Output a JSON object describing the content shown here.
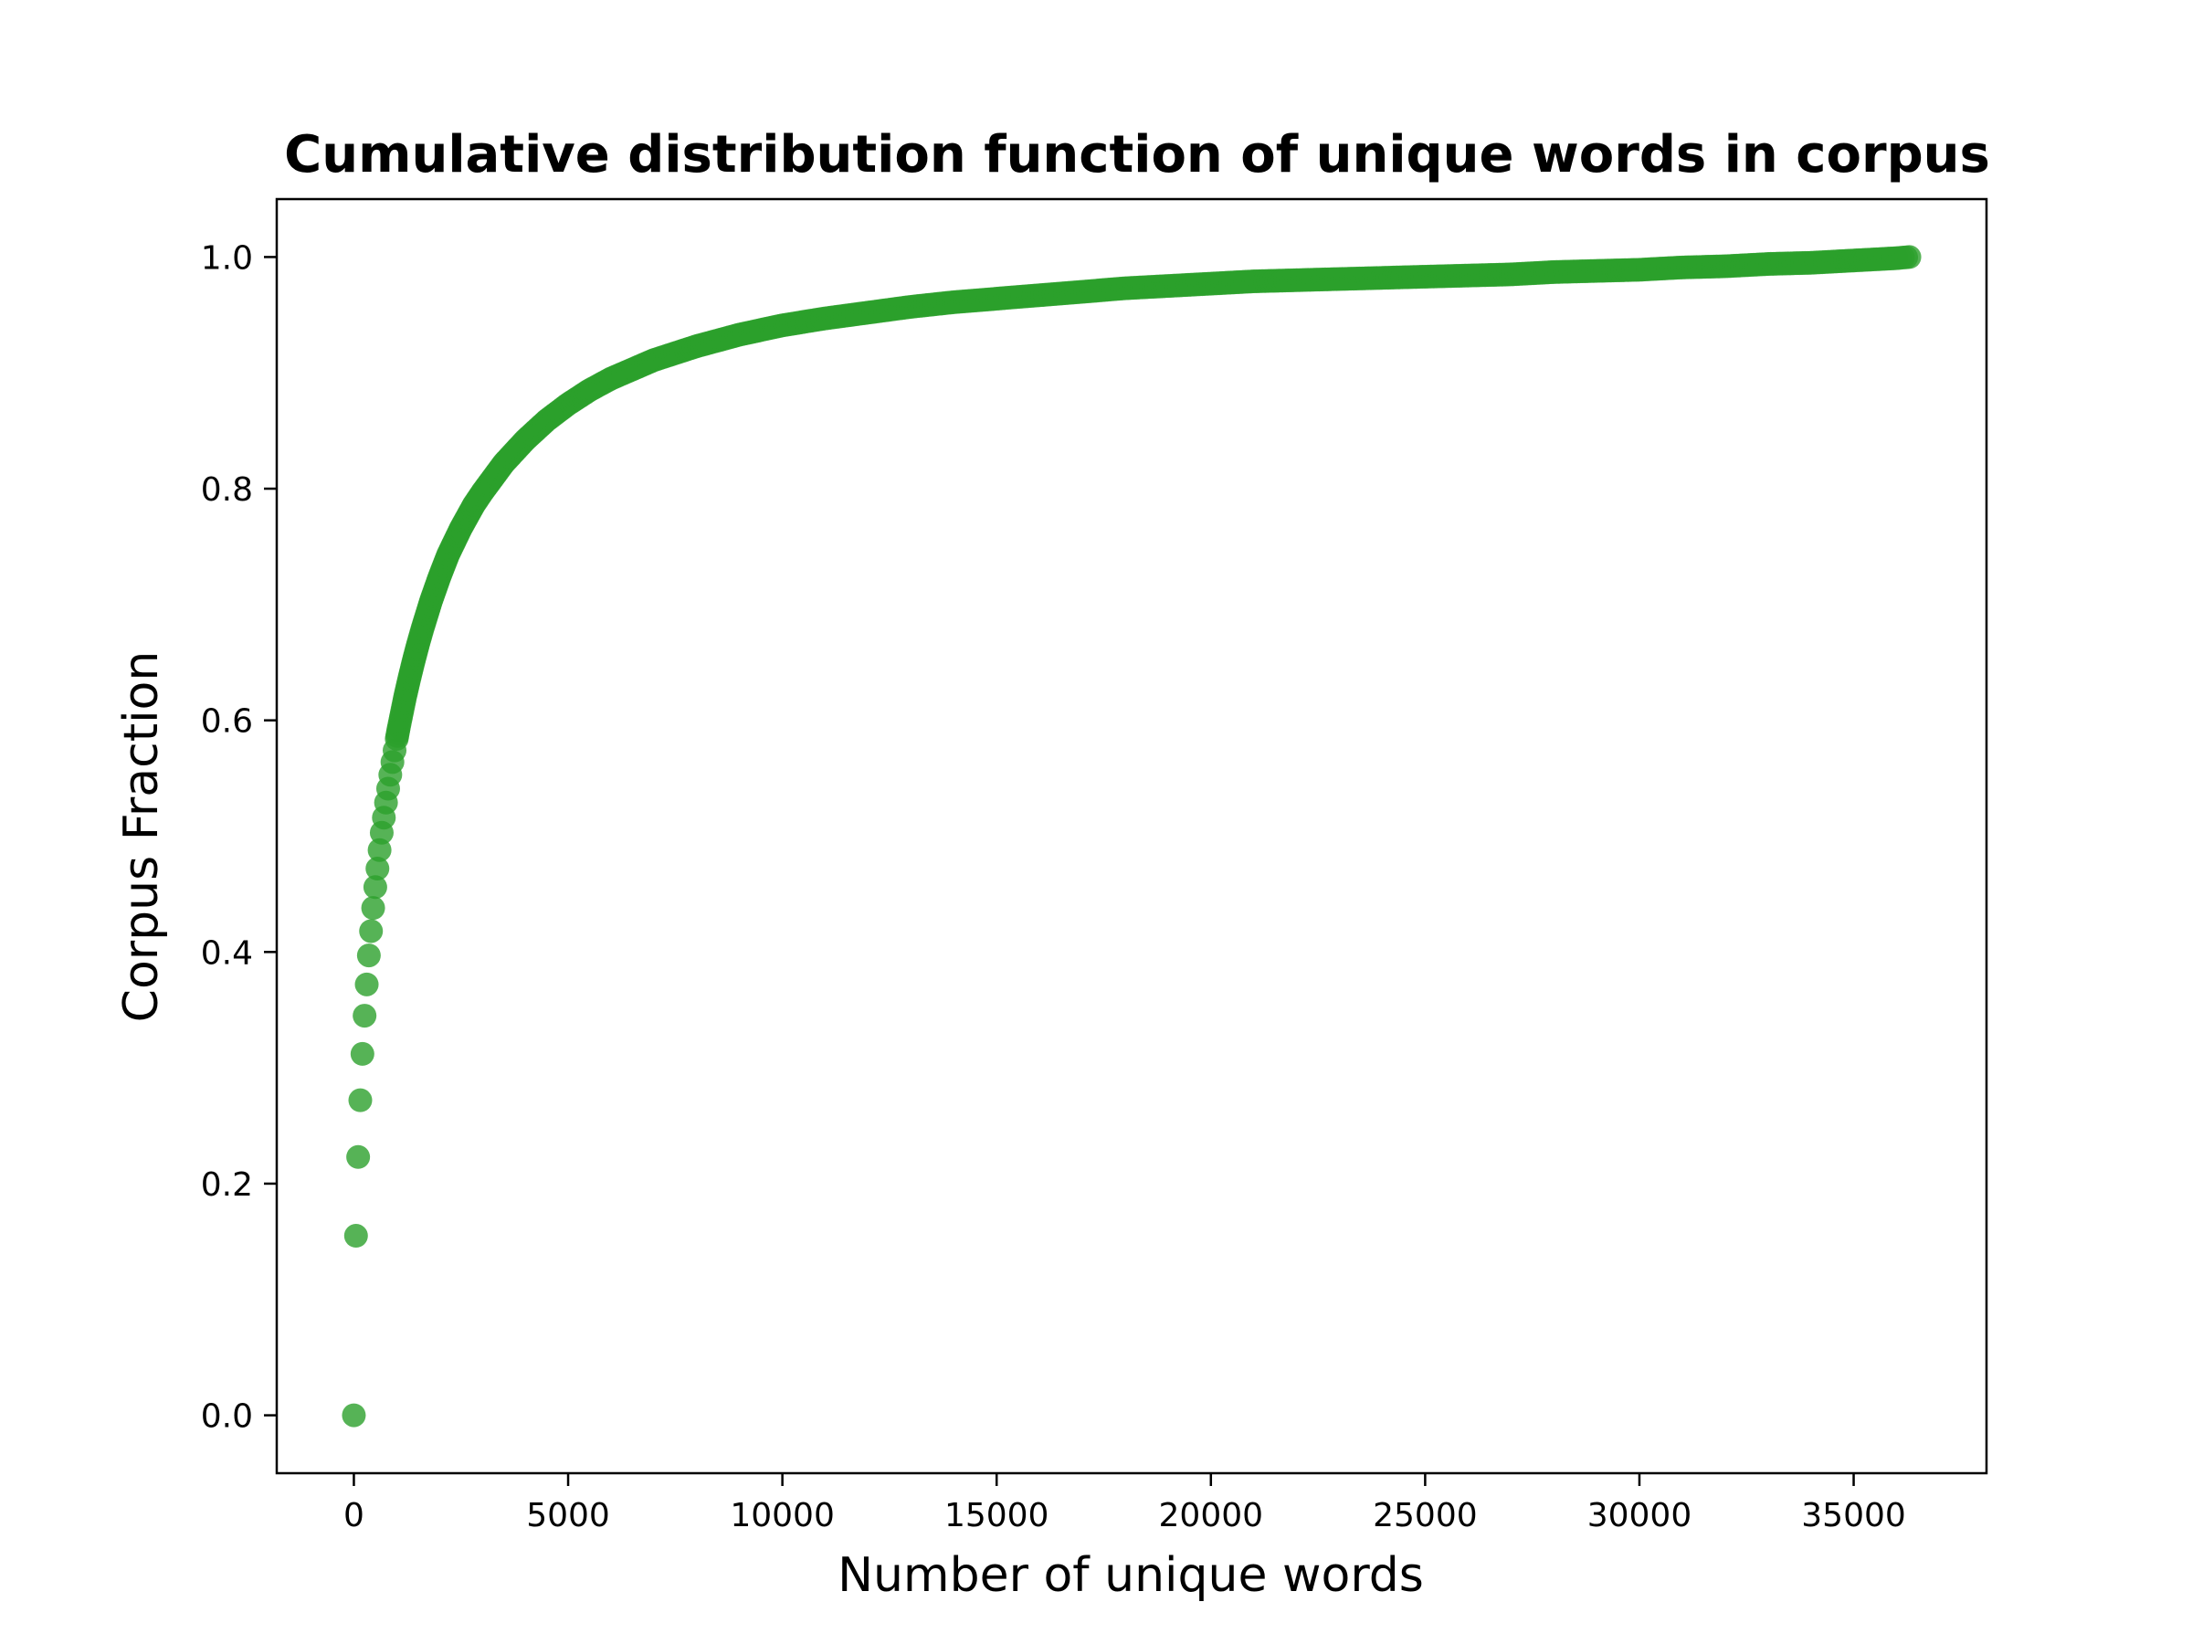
{
  "chart_data": {
    "type": "scatter",
    "title": "Cumulative distribution function of unique words in corpus",
    "xlabel": "Number of unique words",
    "ylabel": "Corpus Fraction",
    "xlim": [
      -1800,
      38100
    ],
    "ylim": [
      -0.05,
      1.05
    ],
    "x_ticks": [
      0,
      5000,
      10000,
      15000,
      20000,
      25000,
      30000,
      35000
    ],
    "y_ticks": [
      0.0,
      0.2,
      0.4,
      0.6,
      0.8,
      1.0
    ],
    "x_tick_labels": [
      "0",
      "5000",
      "10000",
      "15000",
      "20000",
      "25000",
      "30000",
      "35000"
    ],
    "y_tick_labels": [
      "0.0",
      "0.2",
      "0.4",
      "0.6",
      "0.8",
      "1.0"
    ],
    "grid": false,
    "color": "#2ca02c",
    "series": [
      {
        "x": [
          0,
          50,
          100,
          150,
          200,
          250,
          300,
          350,
          400,
          450,
          500,
          550,
          600,
          650,
          700,
          750,
          800,
          850,
          900,
          950,
          1000,
          1050,
          1100,
          1150,
          1200,
          1300,
          1400,
          1500,
          1600,
          1800,
          2000,
          2200,
          2500,
          2800,
          3000,
          3500,
          4000,
          4500,
          5000,
          5500,
          6000,
          7000,
          8000,
          9000,
          10000,
          11000,
          12000,
          13000,
          14000,
          15000,
          16000,
          17000,
          18000,
          19000,
          20000,
          21000,
          22000,
          23000,
          24000,
          25000,
          26000,
          27000,
          28000,
          29000,
          30000,
          31000,
          32000,
          33000,
          34000,
          35000,
          36000,
          36300
        ],
        "y": [
          0.0,
          0.155,
          0.223,
          0.272,
          0.312,
          0.345,
          0.372,
          0.397,
          0.418,
          0.438,
          0.456,
          0.472,
          0.488,
          0.503,
          0.516,
          0.529,
          0.541,
          0.553,
          0.564,
          0.574,
          0.584,
          0.594,
          0.603,
          0.612,
          0.621,
          0.637,
          0.652,
          0.666,
          0.679,
          0.703,
          0.724,
          0.743,
          0.766,
          0.786,
          0.797,
          0.822,
          0.842,
          0.859,
          0.873,
          0.885,
          0.895,
          0.911,
          0.923,
          0.933,
          0.941,
          0.947,
          0.952,
          0.957,
          0.961,
          0.964,
          0.967,
          0.97,
          0.973,
          0.975,
          0.977,
          0.979,
          0.98,
          0.981,
          0.982,
          0.983,
          0.984,
          0.985,
          0.987,
          0.988,
          0.989,
          0.991,
          0.992,
          0.994,
          0.995,
          0.997,
          0.999,
          1.0
        ]
      }
    ]
  }
}
